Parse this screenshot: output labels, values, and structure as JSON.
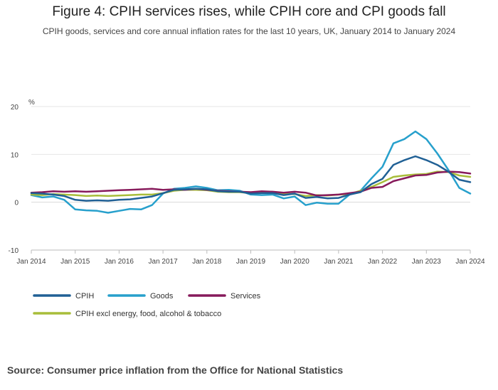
{
  "chart_data": {
    "type": "line",
    "title": "Figure 4: CPIH services rises, while CPIH core and CPI goods fall",
    "subtitle": "CPIH goods, services and core annual inflation rates for the last 10 years, UK, January 2014 to January 2024",
    "ylabel": "%",
    "ylim": [
      -10,
      20
    ],
    "yticks": [
      20,
      10,
      0,
      -10
    ],
    "xlim": [
      2014.0,
      2024.0
    ],
    "xticks": [
      {
        "x": 2014,
        "label": "Jan 2014"
      },
      {
        "x": 2015,
        "label": "Jan 2015"
      },
      {
        "x": 2016,
        "label": "Jan 2016"
      },
      {
        "x": 2017,
        "label": "Jan 2017"
      },
      {
        "x": 2018,
        "label": "Jan 2018"
      },
      {
        "x": 2019,
        "label": "Jan 2019"
      },
      {
        "x": 2020,
        "label": "Jan 2020"
      },
      {
        "x": 2021,
        "label": "Jan 2021"
      },
      {
        "x": 2022,
        "label": "Jan 2022"
      },
      {
        "x": 2023,
        "label": "Jan 2023"
      },
      {
        "x": 2024,
        "label": "Jan 2024"
      }
    ],
    "series": [
      {
        "name": "CPIH",
        "color": "#206095",
        "points": [
          [
            2014.0,
            1.9
          ],
          [
            2014.25,
            1.8
          ],
          [
            2014.5,
            1.6
          ],
          [
            2014.75,
            1.3
          ],
          [
            2015.0,
            0.5
          ],
          [
            2015.25,
            0.3
          ],
          [
            2015.5,
            0.4
          ],
          [
            2015.75,
            0.3
          ],
          [
            2016.0,
            0.5
          ],
          [
            2016.25,
            0.6
          ],
          [
            2016.5,
            0.9
          ],
          [
            2016.75,
            1.2
          ],
          [
            2017.0,
            1.9
          ],
          [
            2017.25,
            2.6
          ],
          [
            2017.5,
            2.7
          ],
          [
            2017.75,
            2.8
          ],
          [
            2018.0,
            2.7
          ],
          [
            2018.25,
            2.3
          ],
          [
            2018.5,
            2.2
          ],
          [
            2018.75,
            2.2
          ],
          [
            2019.0,
            1.8
          ],
          [
            2019.25,
            1.9
          ],
          [
            2019.5,
            1.9
          ],
          [
            2019.75,
            1.5
          ],
          [
            2020.0,
            1.8
          ],
          [
            2020.25,
            0.9
          ],
          [
            2020.5,
            1.1
          ],
          [
            2020.75,
            0.8
          ],
          [
            2021.0,
            0.9
          ],
          [
            2021.25,
            1.6
          ],
          [
            2021.5,
            2.1
          ],
          [
            2021.75,
            3.8
          ],
          [
            2022.0,
            4.9
          ],
          [
            2022.25,
            7.8
          ],
          [
            2022.5,
            8.8
          ],
          [
            2022.75,
            9.6
          ],
          [
            2023.0,
            8.8
          ],
          [
            2023.25,
            7.8
          ],
          [
            2023.5,
            6.4
          ],
          [
            2023.75,
            4.7
          ],
          [
            2024.0,
            4.2
          ]
        ]
      },
      {
        "name": "Goods",
        "color": "#27a0cc",
        "points": [
          [
            2014.0,
            1.5
          ],
          [
            2014.25,
            1.0
          ],
          [
            2014.5,
            1.2
          ],
          [
            2014.75,
            0.5
          ],
          [
            2015.0,
            -1.5
          ],
          [
            2015.25,
            -1.7
          ],
          [
            2015.5,
            -1.8
          ],
          [
            2015.75,
            -2.2
          ],
          [
            2016.0,
            -1.8
          ],
          [
            2016.25,
            -1.4
          ],
          [
            2016.5,
            -1.5
          ],
          [
            2016.75,
            -0.6
          ],
          [
            2017.0,
            1.8
          ],
          [
            2017.25,
            2.8
          ],
          [
            2017.5,
            3.0
          ],
          [
            2017.75,
            3.3
          ],
          [
            2018.0,
            3.0
          ],
          [
            2018.25,
            2.5
          ],
          [
            2018.5,
            2.6
          ],
          [
            2018.75,
            2.4
          ],
          [
            2019.0,
            1.6
          ],
          [
            2019.25,
            1.5
          ],
          [
            2019.5,
            1.6
          ],
          [
            2019.75,
            0.8
          ],
          [
            2020.0,
            1.2
          ],
          [
            2020.25,
            -0.6
          ],
          [
            2020.5,
            -0.1
          ],
          [
            2020.75,
            -0.3
          ],
          [
            2021.0,
            -0.3
          ],
          [
            2021.25,
            1.6
          ],
          [
            2021.5,
            2.4
          ],
          [
            2021.75,
            5.0
          ],
          [
            2022.0,
            7.4
          ],
          [
            2022.25,
            12.3
          ],
          [
            2022.5,
            13.2
          ],
          [
            2022.75,
            14.8
          ],
          [
            2023.0,
            13.2
          ],
          [
            2023.25,
            10.2
          ],
          [
            2023.5,
            6.8
          ],
          [
            2023.75,
            3.0
          ],
          [
            2024.0,
            1.8
          ]
        ]
      },
      {
        "name": "Services",
        "color": "#871a5b",
        "points": [
          [
            2014.0,
            2.0
          ],
          [
            2014.25,
            2.1
          ],
          [
            2014.5,
            2.3
          ],
          [
            2014.75,
            2.2
          ],
          [
            2015.0,
            2.3
          ],
          [
            2015.25,
            2.2
          ],
          [
            2015.5,
            2.3
          ],
          [
            2015.75,
            2.4
          ],
          [
            2016.0,
            2.5
          ],
          [
            2016.25,
            2.6
          ],
          [
            2016.5,
            2.7
          ],
          [
            2016.75,
            2.8
          ],
          [
            2017.0,
            2.6
          ],
          [
            2017.25,
            2.7
          ],
          [
            2017.5,
            2.6
          ],
          [
            2017.75,
            2.8
          ],
          [
            2018.0,
            2.6
          ],
          [
            2018.25,
            2.4
          ],
          [
            2018.5,
            2.3
          ],
          [
            2018.75,
            2.2
          ],
          [
            2019.0,
            2.1
          ],
          [
            2019.25,
            2.3
          ],
          [
            2019.5,
            2.2
          ],
          [
            2019.75,
            2.0
          ],
          [
            2020.0,
            2.2
          ],
          [
            2020.25,
            2.0
          ],
          [
            2020.5,
            1.4
          ],
          [
            2020.75,
            1.5
          ],
          [
            2021.0,
            1.6
          ],
          [
            2021.25,
            1.9
          ],
          [
            2021.5,
            2.2
          ],
          [
            2021.75,
            3.0
          ],
          [
            2022.0,
            3.2
          ],
          [
            2022.25,
            4.4
          ],
          [
            2022.5,
            5.0
          ],
          [
            2022.75,
            5.6
          ],
          [
            2023.0,
            5.7
          ],
          [
            2023.25,
            6.2
          ],
          [
            2023.5,
            6.4
          ],
          [
            2023.75,
            6.3
          ],
          [
            2024.0,
            6.0
          ]
        ]
      },
      {
        "name": "CPIH excl energy, food, alcohol & tobacco",
        "color": "#a8bd3a",
        "points": [
          [
            2014.0,
            1.6
          ],
          [
            2014.25,
            1.5
          ],
          [
            2014.5,
            1.7
          ],
          [
            2014.75,
            1.6
          ],
          [
            2015.0,
            1.5
          ],
          [
            2015.25,
            1.3
          ],
          [
            2015.5,
            1.4
          ],
          [
            2015.75,
            1.3
          ],
          [
            2016.0,
            1.4
          ],
          [
            2016.25,
            1.5
          ],
          [
            2016.5,
            1.6
          ],
          [
            2016.75,
            1.6
          ],
          [
            2017.0,
            1.9
          ],
          [
            2017.25,
            2.4
          ],
          [
            2017.5,
            2.6
          ],
          [
            2017.75,
            2.6
          ],
          [
            2018.0,
            2.5
          ],
          [
            2018.25,
            2.2
          ],
          [
            2018.5,
            2.1
          ],
          [
            2018.75,
            2.1
          ],
          [
            2019.0,
            1.9
          ],
          [
            2019.25,
            2.0
          ],
          [
            2019.5,
            1.9
          ],
          [
            2019.75,
            1.8
          ],
          [
            2020.0,
            1.7
          ],
          [
            2020.25,
            1.3
          ],
          [
            2020.5,
            1.5
          ],
          [
            2020.75,
            1.4
          ],
          [
            2021.0,
            1.6
          ],
          [
            2021.25,
            1.7
          ],
          [
            2021.5,
            2.4
          ],
          [
            2021.75,
            3.2
          ],
          [
            2022.0,
            4.2
          ],
          [
            2022.25,
            5.3
          ],
          [
            2022.5,
            5.6
          ],
          [
            2022.75,
            5.8
          ],
          [
            2023.0,
            5.9
          ],
          [
            2023.25,
            6.4
          ],
          [
            2023.5,
            6.3
          ],
          [
            2023.75,
            5.6
          ],
          [
            2024.0,
            5.3
          ]
        ]
      }
    ],
    "legend": [
      {
        "name": "CPIH",
        "color": "#206095"
      },
      {
        "name": "Goods",
        "color": "#27a0cc"
      },
      {
        "name": "Services",
        "color": "#871a5b"
      },
      {
        "name": "CPIH excl energy, food, alcohol & tobacco",
        "color": "#a8bd3a"
      }
    ],
    "grid": true
  },
  "source": "Source: Consumer price inflation from the Office for National Statistics"
}
